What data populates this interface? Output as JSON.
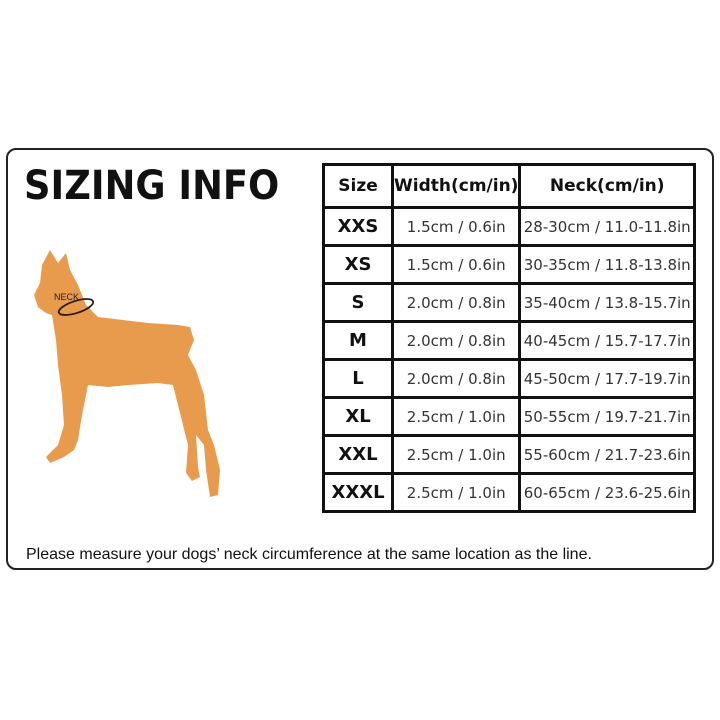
{
  "title": "SIZING INFO",
  "illustration": {
    "neck_label": "NECK",
    "dog_color": "#E89B4C"
  },
  "table": {
    "headers": [
      "Size",
      "Width(cm/in)",
      "Neck(cm/in)"
    ],
    "rows": [
      {
        "size": "XXS",
        "width": "1.5cm / 0.6in",
        "neck": "28-30cm / 11.0-11.8in"
      },
      {
        "size": "XS",
        "width": "1.5cm / 0.6in",
        "neck": "30-35cm / 11.8-13.8in"
      },
      {
        "size": "S",
        "width": "2.0cm / 0.8in",
        "neck": "35-40cm / 13.8-15.7in"
      },
      {
        "size": "M",
        "width": "2.0cm / 0.8in",
        "neck": "40-45cm / 15.7-17.7in"
      },
      {
        "size": "L",
        "width": "2.0cm / 0.8in",
        "neck": "45-50cm / 17.7-19.7in"
      },
      {
        "size": "XL",
        "width": "2.5cm / 1.0in",
        "neck": "50-55cm / 19.7-21.7in"
      },
      {
        "size": "XXL",
        "width": "2.5cm / 1.0in",
        "neck": "55-60cm / 21.7-23.6in"
      },
      {
        "size": "XXXL",
        "width": "2.5cm / 1.0in",
        "neck": "60-65cm / 23.6-25.6in"
      }
    ]
  },
  "note": "Please measure your dogs’  neck circumference at the same location as the line."
}
